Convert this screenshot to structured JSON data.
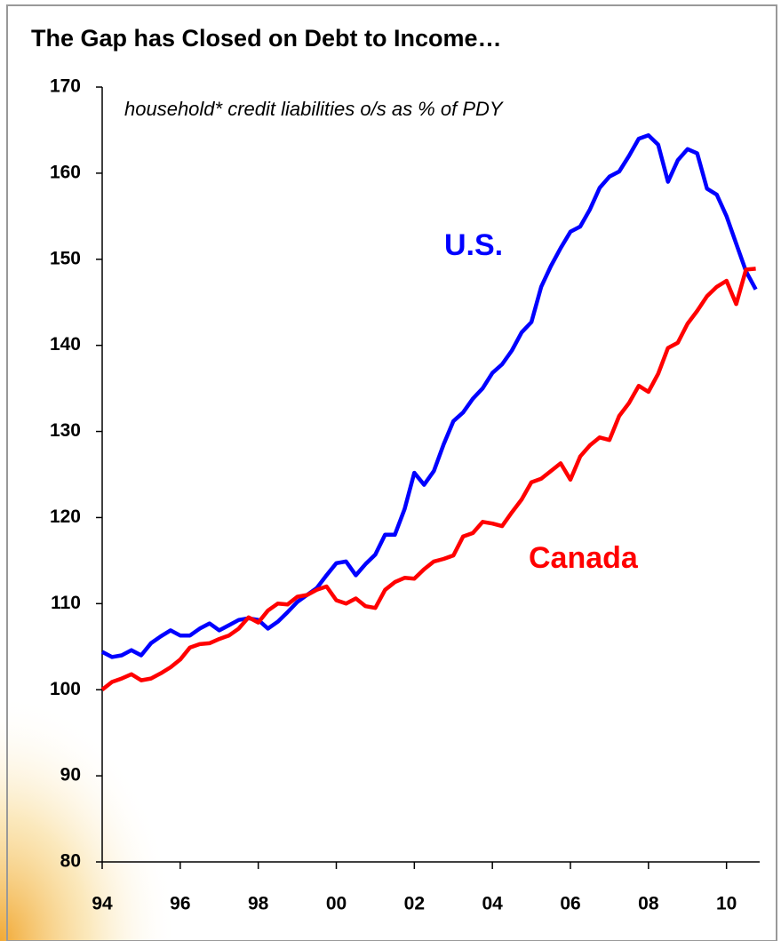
{
  "chart_data": {
    "type": "line",
    "title": "The Gap has Closed on Debt to Income…",
    "subtitle": "household* credit liabilities o/s as % of PDY",
    "x": [
      1994,
      1994.25,
      1994.5,
      1994.75,
      1995,
      1995.25,
      1995.5,
      1995.75,
      1996,
      1996.25,
      1996.5,
      1996.75,
      1997,
      1997.25,
      1997.5,
      1997.75,
      1998,
      1998.25,
      1998.5,
      1998.75,
      1999,
      1999.25,
      1999.5,
      1999.75,
      2000,
      2000.25,
      2000.5,
      2000.75,
      2001,
      2001.25,
      2001.5,
      2001.75,
      2002,
      2002.25,
      2002.5,
      2002.75,
      2003,
      2003.25,
      2003.5,
      2003.75,
      2004,
      2004.25,
      2004.5,
      2004.75,
      2005,
      2005.25,
      2005.5,
      2005.75,
      2006,
      2006.25,
      2006.5,
      2006.75,
      2007,
      2007.25,
      2007.5,
      2007.75,
      2008,
      2008.25,
      2008.5,
      2008.75,
      2009,
      2009.25,
      2009.5,
      2009.75,
      2010,
      2010.25,
      2010.5,
      2010.75
    ],
    "series": [
      {
        "name": "U.S.",
        "color": "#0000ff",
        "values": [
          104.4,
          103.8,
          104.0,
          104.6,
          104.0,
          105.4,
          106.2,
          106.9,
          106.3,
          106.3,
          107.1,
          107.7,
          106.9,
          107.5,
          108.1,
          108.3,
          108.1,
          107.1,
          107.9,
          109.0,
          110.2,
          111.0,
          111.8,
          113.3,
          114.7,
          114.9,
          113.3,
          114.6,
          115.7,
          118.0,
          118.0,
          121.0,
          125.2,
          123.8,
          125.4,
          128.5,
          131.2,
          132.2,
          133.8,
          135.0,
          136.8,
          137.8,
          139.4,
          141.5,
          142.7,
          146.8,
          149.2,
          151.3,
          153.2,
          153.8,
          155.8,
          158.3,
          159.6,
          160.2,
          162.0,
          164.0,
          164.4,
          163.3,
          159.0,
          161.5,
          162.8,
          162.3,
          158.2,
          157.5,
          155.0,
          151.8,
          148.6,
          146.5
        ]
      },
      {
        "name": "Canada",
        "color": "#ff0000",
        "values": [
          100.0,
          100.9,
          101.3,
          101.8,
          101.1,
          101.3,
          101.9,
          102.6,
          103.5,
          104.9,
          105.3,
          105.4,
          105.9,
          106.3,
          107.1,
          108.4,
          107.8,
          109.2,
          110.0,
          109.9,
          110.8,
          111.0,
          111.6,
          112.0,
          110.4,
          110.0,
          110.6,
          109.7,
          109.5,
          111.6,
          112.5,
          113.0,
          112.9,
          114.0,
          114.9,
          115.2,
          115.6,
          117.8,
          118.2,
          119.5,
          119.3,
          119.0,
          120.6,
          122.1,
          124.1,
          124.5,
          125.4,
          126.3,
          124.4,
          127.1,
          128.4,
          129.3,
          129.0,
          131.8,
          133.3,
          135.3,
          134.6,
          136.7,
          139.7,
          140.3,
          142.5,
          144.0,
          145.7,
          146.8,
          147.5,
          144.8,
          148.8,
          148.9
        ]
      }
    ],
    "xlim": [
      1994,
      2010.85
    ],
    "xticks": [
      {
        "value": 1994,
        "label": "94"
      },
      {
        "value": 1996,
        "label": "96"
      },
      {
        "value": 1998,
        "label": "98"
      },
      {
        "value": 2000,
        "label": "00"
      },
      {
        "value": 2002,
        "label": "02"
      },
      {
        "value": 2004,
        "label": "04"
      },
      {
        "value": 2006,
        "label": "06"
      },
      {
        "value": 2008,
        "label": "08"
      },
      {
        "value": 2010,
        "label": "10"
      }
    ],
    "ylim": [
      80,
      170
    ],
    "yticks": [
      80,
      90,
      100,
      110,
      120,
      130,
      140,
      150,
      160,
      170
    ],
    "grid": false
  }
}
